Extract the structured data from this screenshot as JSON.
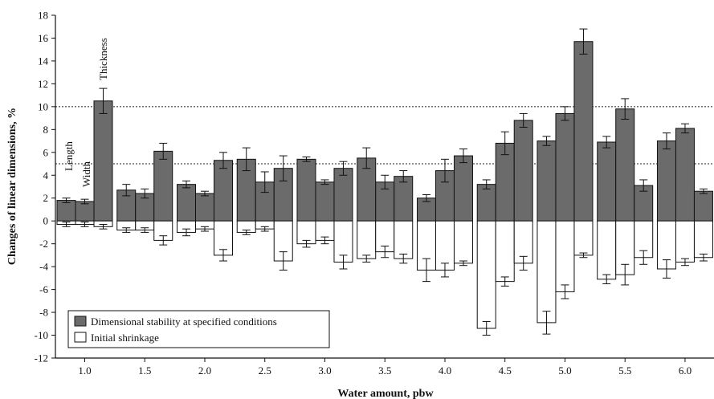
{
  "chart_data": {
    "type": "bar",
    "xlabel": "Water amount, pbw",
    "ylabel": "Changes of linear dimensions, %",
    "ylim": [
      -12,
      18
    ],
    "yticks": [
      -12,
      -10,
      -8,
      -6,
      -4,
      -2,
      0,
      2,
      4,
      6,
      8,
      10,
      12,
      14,
      16,
      18
    ],
    "categories": [
      "1.0",
      "1.5",
      "2.0",
      "2.5",
      "3.0",
      "3.5",
      "4.0",
      "4.5",
      "5.0",
      "5.5",
      "6.0"
    ],
    "bar_order_within_group": [
      "Length",
      "Width",
      "Thickness"
    ],
    "reference_lines": [
      5,
      10
    ],
    "reference_line_style": "dotted",
    "legend_position": "bottom-left",
    "colors": {
      "stability": "#6b6b6b",
      "shrinkage": "#ffffff",
      "stroke": "#111111"
    },
    "series": [
      {
        "name": "Dimensional stability at specified conditions",
        "values": [
          [
            1.8,
            1.7,
            10.5
          ],
          [
            2.7,
            2.4,
            6.1
          ],
          [
            3.2,
            2.4,
            5.3
          ],
          [
            5.4,
            3.4,
            4.6
          ],
          [
            5.4,
            3.4,
            4.6
          ],
          [
            5.5,
            3.4,
            3.9
          ],
          [
            2.0,
            4.4,
            5.7
          ],
          [
            3.2,
            6.8,
            8.8
          ],
          [
            7.0,
            9.4,
            15.7
          ],
          [
            6.9,
            9.8,
            3.1
          ],
          [
            7.0,
            8.1,
            2.6
          ]
        ],
        "errors": [
          [
            0.2,
            0.2,
            1.1
          ],
          [
            0.5,
            0.4,
            0.7
          ],
          [
            0.3,
            0.2,
            0.7
          ],
          [
            1.0,
            0.9,
            1.1
          ],
          [
            0.2,
            0.2,
            0.6
          ],
          [
            0.9,
            0.6,
            0.5
          ],
          [
            0.3,
            1.0,
            0.6
          ],
          [
            0.4,
            1.0,
            0.6
          ],
          [
            0.4,
            0.6,
            1.1
          ],
          [
            0.5,
            0.9,
            0.5
          ],
          [
            0.7,
            0.4,
            0.2
          ]
        ]
      },
      {
        "name": "Initial shrinkage",
        "values": [
          [
            -0.3,
            -0.3,
            -0.5
          ],
          [
            -0.8,
            -0.8,
            -1.7
          ],
          [
            -1.0,
            -0.7,
            -3.0
          ],
          [
            -1.0,
            -0.7,
            -3.5
          ],
          [
            -2.0,
            -1.7,
            -3.6
          ],
          [
            -3.3,
            -2.7,
            -3.3
          ],
          [
            -4.3,
            -4.3,
            -3.7
          ],
          [
            -9.4,
            -5.3,
            -3.7
          ],
          [
            -8.9,
            -6.2,
            -3.0
          ],
          [
            -5.1,
            -4.7,
            -3.2
          ],
          [
            -4.2,
            -3.6,
            -3.2
          ]
        ],
        "errors": [
          [
            0.2,
            0.2,
            0.2
          ],
          [
            0.2,
            0.2,
            0.4
          ],
          [
            0.3,
            0.2,
            0.5
          ],
          [
            0.2,
            0.2,
            0.8
          ],
          [
            0.3,
            0.3,
            0.6
          ],
          [
            0.3,
            0.5,
            0.4
          ],
          [
            1.0,
            0.6,
            0.2
          ],
          [
            0.6,
            0.4,
            0.6
          ],
          [
            1.0,
            0.6,
            0.2
          ],
          [
            0.4,
            0.9,
            0.6
          ],
          [
            0.8,
            0.3,
            0.3
          ]
        ]
      }
    ],
    "annotations": [
      "Length",
      "Width",
      "Thickness"
    ]
  }
}
